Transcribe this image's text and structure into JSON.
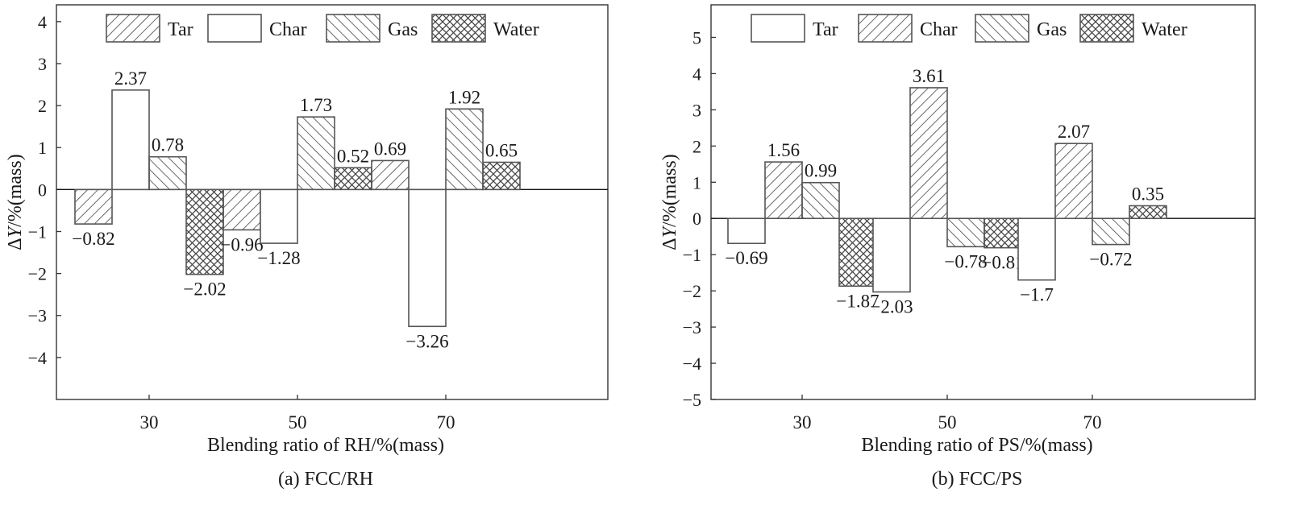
{
  "chart_data": [
    {
      "type": "bar",
      "caption": "(a) FCC/RH",
      "xlabel": "Blending ratio of RH/%(mass)",
      "ylabel": "ΔY/%(mass)",
      "ylim": [
        -5,
        4.4
      ],
      "yticks": [
        -4,
        -3,
        -2,
        -1,
        0,
        1,
        2,
        3,
        4
      ],
      "categories": [
        "30",
        "50",
        "70"
      ],
      "legend_position": "top",
      "series": [
        {
          "name": "Tar",
          "pattern": "diag-fwd",
          "values": [
            -0.82,
            -0.96,
            0.69
          ],
          "labels": [
            "−0.82",
            "−0.96",
            "0.69"
          ]
        },
        {
          "name": "Char",
          "pattern": "none",
          "values": [
            2.37,
            -1.28,
            -3.26
          ],
          "labels": [
            "2.37",
            "−1.28",
            "−3.26"
          ]
        },
        {
          "name": "Gas",
          "pattern": "diag-back",
          "values": [
            0.78,
            1.73,
            1.92
          ],
          "labels": [
            "0.78",
            "1.73",
            "1.92"
          ]
        },
        {
          "name": "Water",
          "pattern": "cross",
          "values": [
            -2.02,
            0.52,
            0.65
          ],
          "labels": [
            "−2.02",
            "0.52",
            "0.65"
          ]
        }
      ]
    },
    {
      "type": "bar",
      "caption": "(b) FCC/PS",
      "xlabel": "Blending ratio of PS/%(mass)",
      "ylabel": "ΔY/%(mass)",
      "ylim": [
        -5,
        5.9
      ],
      "yticks": [
        -5,
        -4,
        -3,
        -2,
        -1,
        0,
        1,
        2,
        3,
        4,
        5
      ],
      "categories": [
        "30",
        "50",
        "70"
      ],
      "legend_position": "top",
      "series": [
        {
          "name": "Tar",
          "pattern": "none",
          "values": [
            -0.69,
            -2.03,
            -1.7
          ],
          "labels": [
            "−0.69",
            "−2.03",
            "−1.7"
          ]
        },
        {
          "name": "Char",
          "pattern": "diag-fwd",
          "values": [
            1.56,
            3.61,
            2.07
          ],
          "labels": [
            "1.56",
            "3.61",
            "2.07"
          ]
        },
        {
          "name": "Gas",
          "pattern": "diag-back",
          "values": [
            0.99,
            -0.78,
            -0.72
          ],
          "labels": [
            "0.99",
            "−0.78",
            "−0.72"
          ]
        },
        {
          "name": "Water",
          "pattern": "cross",
          "values": [
            -1.87,
            -0.81,
            0.35
          ],
          "labels": [
            "−1.87",
            "−0.81",
            "0.35"
          ]
        }
      ]
    }
  ]
}
